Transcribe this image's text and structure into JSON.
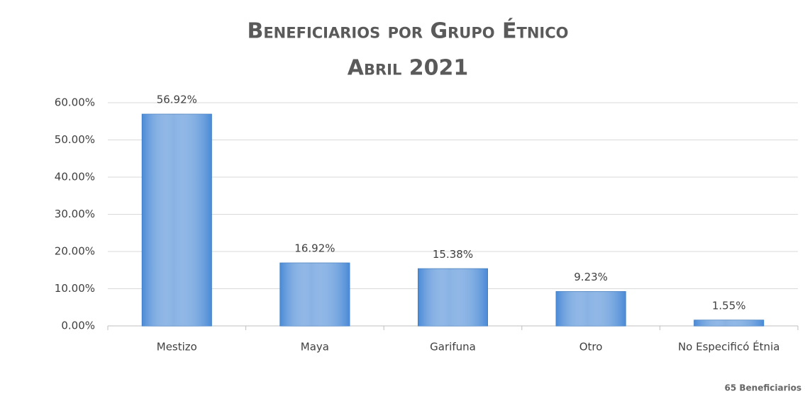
{
  "chart_data": {
    "type": "bar",
    "title": "Beneficiarios por Grupo Étnico",
    "subtitle": "Abril 2021",
    "categories": [
      "Mestizo",
      "Maya",
      "Garifuna",
      "Otro",
      "No Especificó Étnia"
    ],
    "values": [
      56.92,
      16.92,
      15.38,
      9.23,
      1.55
    ],
    "value_labels": [
      "56.92%",
      "16.92%",
      "15.38%",
      "9.23%",
      "1.55%"
    ],
    "color": "#4a8ad6",
    "ylim": [
      0,
      60
    ],
    "yticks": [
      {
        "value": 0,
        "label": "0.00%"
      },
      {
        "value": 10,
        "label": "10.00%"
      },
      {
        "value": 20,
        "label": "20.00%"
      },
      {
        "value": 30,
        "label": "30.00%"
      },
      {
        "value": 40,
        "label": "40.00%"
      },
      {
        "value": 50,
        "label": "50.00%"
      },
      {
        "value": 60,
        "label": "60.00%"
      }
    ],
    "grid": true,
    "annotation": "65 Beneficiarios"
  }
}
